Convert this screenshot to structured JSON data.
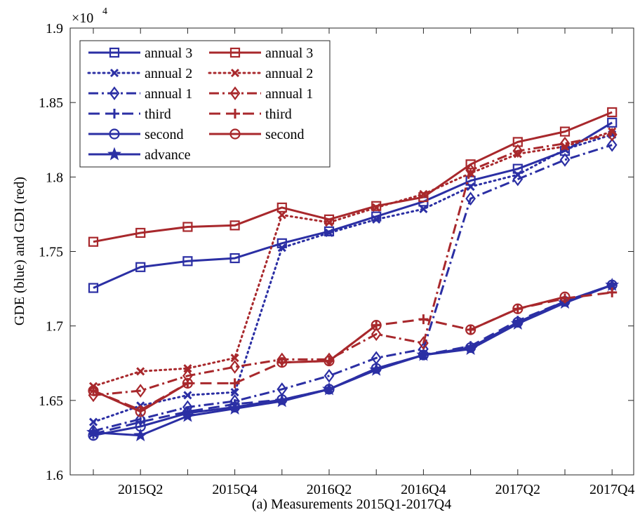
{
  "chart_data": {
    "type": "line",
    "xlabel": "(a) Measurements 2015Q1-2017Q4",
    "ylabel": "GDE (blue) and GDI (red)",
    "exponent_label": "×10",
    "exponent_power": "4",
    "categories": [
      "2015Q1",
      "2015Q2",
      "2015Q3",
      "2015Q4",
      "2016Q1",
      "2016Q2",
      "2016Q3",
      "2016Q4",
      "2017Q1",
      "2017Q2",
      "2017Q3",
      "2017Q4"
    ],
    "xtick_labels": [
      "2015Q2",
      "2015Q4",
      "2016Q2",
      "2016Q4",
      "2017Q2",
      "2017Q4"
    ],
    "ylim": [
      1.6,
      1.9
    ],
    "ytick_labels": [
      "1.6",
      "1.65",
      "1.7",
      "1.75",
      "1.8",
      "1.85",
      "1.9"
    ],
    "yticks": [
      1.6,
      1.65,
      1.7,
      1.75,
      1.8,
      1.85,
      1.9
    ],
    "grid": false,
    "legend_position": "top-left",
    "colors": {
      "blue": "#2b2fa4",
      "red": "#a8282c"
    },
    "series": [
      {
        "name": "annual 3",
        "color": "#2b2fa4",
        "dash": "solid",
        "marker": "square",
        "values": [
          1.7255,
          1.7395,
          1.7435,
          1.7455,
          1.7555,
          1.7635,
          1.7735,
          1.7835,
          1.7975,
          1.8055,
          1.8175,
          1.8365
        ]
      },
      {
        "name": "annual 2",
        "color": "#2b2fa4",
        "dash": "dotted",
        "marker": "x",
        "values": [
          1.6355,
          1.6465,
          1.6535,
          1.6555,
          1.7525,
          1.7625,
          1.7715,
          1.7785,
          1.7935,
          1.8015,
          1.8185,
          1.8285
        ]
      },
      {
        "name": "annual 1",
        "color": "#2b2fa4",
        "dash": "dashdot",
        "marker": "diamond",
        "values": [
          1.6295,
          1.6375,
          1.6455,
          1.6495,
          1.6575,
          1.6665,
          1.6785,
          1.6845,
          1.7855,
          1.7985,
          1.8115,
          1.8215
        ]
      },
      {
        "name": "third",
        "color": "#2b2fa4",
        "dash": "dashed",
        "marker": "plus",
        "values": [
          1.6275,
          1.6355,
          1.6425,
          1.6475,
          1.6505,
          1.6575,
          1.6715,
          1.6805,
          1.6865,
          1.7035,
          1.7165,
          1.7275
        ]
      },
      {
        "name": "second",
        "color": "#2b2fa4",
        "dash": "solid",
        "marker": "circle",
        "values": [
          1.6265,
          1.6325,
          1.6415,
          1.6455,
          1.6505,
          1.6575,
          1.6715,
          1.6805,
          1.6855,
          1.7025,
          1.7165,
          1.7275
        ]
      },
      {
        "name": "advance",
        "color": "#2b2fa4",
        "dash": "solid",
        "marker": "star",
        "values": [
          1.6285,
          1.6265,
          1.6395,
          1.6445,
          1.6495,
          1.6575,
          1.6705,
          1.6805,
          1.6845,
          1.7015,
          1.7155,
          1.7275
        ]
      },
      {
        "name": "annual 3",
        "color": "#a8282c",
        "dash": "solid",
        "marker": "square",
        "values": [
          1.7565,
          1.7625,
          1.7665,
          1.7675,
          1.7795,
          1.7715,
          1.7805,
          1.7865,
          1.8085,
          1.8235,
          1.8305,
          1.8435
        ]
      },
      {
        "name": "annual 2",
        "color": "#a8282c",
        "dash": "dotted",
        "marker": "x",
        "values": [
          1.6595,
          1.6695,
          1.6715,
          1.6785,
          1.7745,
          1.7695,
          1.7795,
          1.7885,
          1.8025,
          1.8155,
          1.8205,
          1.8305
        ]
      },
      {
        "name": "annual 1",
        "color": "#a8282c",
        "dash": "dashdot",
        "marker": "diamond",
        "values": [
          1.6535,
          1.6565,
          1.6665,
          1.6725,
          1.6775,
          1.6775,
          1.6945,
          1.6885,
          1.8045,
          1.8175,
          1.8225,
          1.8285
        ]
      },
      {
        "name": "third",
        "color": "#a8282c",
        "dash": "dashed",
        "marker": "plus",
        "values": [
          1.6565,
          1.6435,
          1.6615,
          1.6615,
          1.6755,
          1.6765,
          1.7005,
          1.7045,
          1.6975,
          1.7115,
          1.7185,
          1.7225
        ]
      },
      {
        "name": "second",
        "color": "#a8282c",
        "dash": "solid",
        "marker": "circle",
        "values": [
          1.6565,
          1.6425,
          1.6615,
          null,
          1.6755,
          1.6765,
          1.7005,
          null,
          1.6975,
          1.7115,
          1.7195,
          null
        ]
      }
    ],
    "legend": [
      {
        "label": "annual 3",
        "series": 0
      },
      {
        "label": "annual 3",
        "series": 6
      },
      {
        "label": "annual 2",
        "series": 1
      },
      {
        "label": "annual 2",
        "series": 7
      },
      {
        "label": "annual 1",
        "series": 2
      },
      {
        "label": "annual 1",
        "series": 8
      },
      {
        "label": "third",
        "series": 3
      },
      {
        "label": "third",
        "series": 9
      },
      {
        "label": "second",
        "series": 4
      },
      {
        "label": "second",
        "series": 10
      },
      {
        "label": "advance",
        "series": 5
      }
    ]
  }
}
